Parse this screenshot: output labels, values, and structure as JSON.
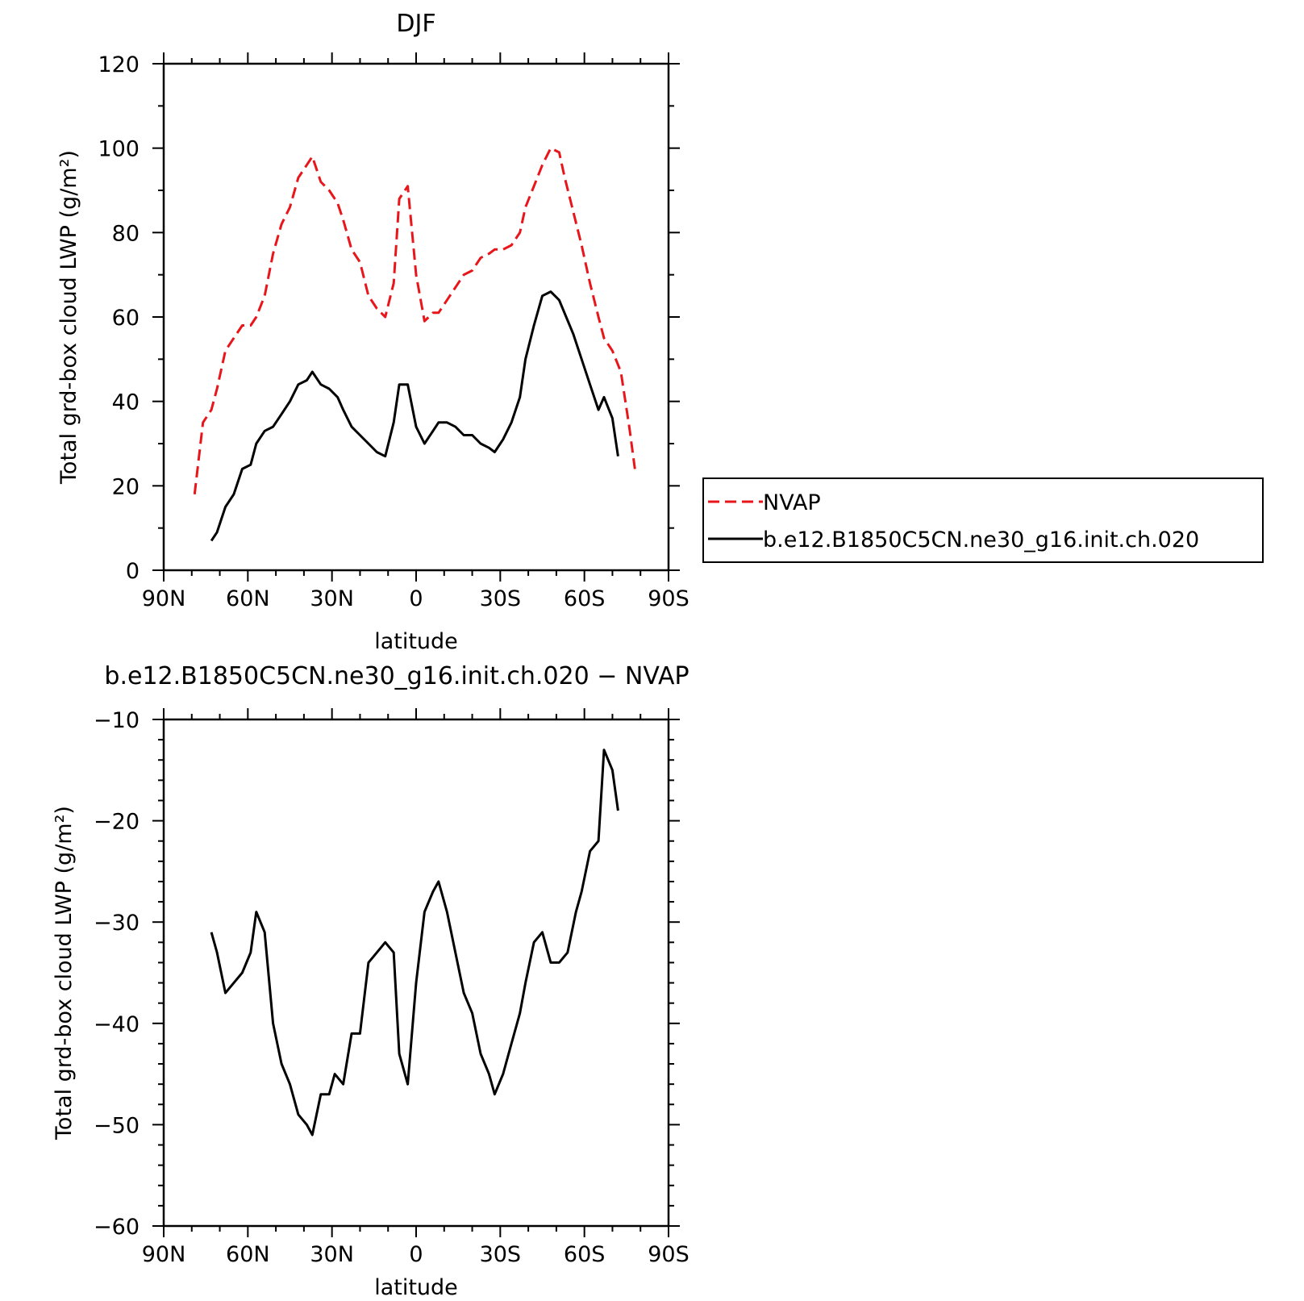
{
  "chart_data": [
    {
      "type": "line",
      "title": "DJF",
      "xlabel": "latitude",
      "ylabel": "Total grd-box cloud LWP (g/m²)",
      "xlim": [
        90,
        -90
      ],
      "ylim": [
        0,
        120
      ],
      "x_ticks": [
        90,
        60,
        30,
        0,
        -30,
        -60,
        -90
      ],
      "x_tick_labels": [
        "90N",
        "60N",
        "30N",
        "0",
        "30S",
        "60S",
        "90S"
      ],
      "y_ticks": [
        0,
        20,
        40,
        60,
        80,
        100,
        120
      ],
      "y_tick_labels": [
        "0",
        "20",
        "40",
        "60",
        "80",
        "100",
        "120"
      ],
      "legend_position": "right",
      "series": [
        {
          "name": "NVAP",
          "color": "#e8161a",
          "dash": "dashed",
          "x": [
            79,
            76,
            73,
            71,
            68,
            65,
            62,
            59,
            57,
            54,
            51,
            48,
            45,
            42,
            39,
            37,
            34,
            31,
            28,
            26,
            23,
            20,
            17,
            14,
            11,
            8,
            6,
            3,
            0,
            -3,
            -6,
            -8,
            -11,
            -14,
            -17,
            -20,
            -23,
            -26,
            -28,
            -31,
            -34,
            -37,
            -39,
            -42,
            -45,
            -48,
            -51,
            -53,
            -56,
            -59,
            -62,
            -65,
            -67,
            -70,
            -73,
            -76,
            -78
          ],
          "y": [
            18,
            35,
            38,
            43,
            52,
            55,
            58,
            58,
            60,
            65,
            75,
            82,
            86,
            93,
            96,
            98,
            92,
            90,
            87,
            83,
            76,
            73,
            65,
            62,
            60,
            68,
            88,
            91,
            70,
            59,
            61,
            61,
            64,
            67,
            70,
            71,
            74,
            75,
            76,
            76,
            77,
            80,
            86,
            91,
            96,
            100,
            99,
            93,
            85,
            77,
            68,
            60,
            55,
            52,
            47,
            34,
            24
          ]
        },
        {
          "name": "b.e12.B1850C5CN.ne30_g16.init.ch.020",
          "color": "#000000",
          "dash": "solid",
          "x": [
            73,
            71,
            68,
            65,
            62,
            59,
            57,
            54,
            51,
            48,
            45,
            42,
            39,
            37,
            34,
            31,
            28,
            26,
            23,
            20,
            17,
            14,
            11,
            8,
            6,
            3,
            0,
            -3,
            -6,
            -8,
            -11,
            -14,
            -17,
            -20,
            -23,
            -26,
            -28,
            -31,
            -34,
            -37,
            -39,
            -42,
            -45,
            -48,
            -51,
            -56,
            -59,
            -62,
            -65,
            -67,
            -70,
            -72
          ],
          "y": [
            7,
            9,
            15,
            18,
            24,
            25,
            30,
            33,
            34,
            37,
            40,
            44,
            45,
            47,
            44,
            43,
            41,
            38,
            34,
            32,
            30,
            28,
            27,
            35,
            44,
            44,
            34,
            30,
            33,
            35,
            35,
            34,
            32,
            32,
            30,
            29,
            28,
            31,
            35,
            41,
            50,
            58,
            65,
            66,
            64,
            56,
            50,
            44,
            38,
            41,
            36,
            27
          ]
        }
      ]
    },
    {
      "type": "line",
      "title": "b.e12.B1850C5CN.ne30_g16.init.ch.020 − NVAP",
      "xlabel": "latitude",
      "ylabel": "Total grd-box cloud LWP (g/m²)",
      "xlim": [
        90,
        -90
      ],
      "ylim": [
        -60,
        -10
      ],
      "x_ticks": [
        90,
        60,
        30,
        0,
        -30,
        -60,
        -90
      ],
      "x_tick_labels": [
        "90N",
        "60N",
        "30N",
        "0",
        "30S",
        "60S",
        "90S"
      ],
      "y_ticks": [
        -60,
        -50,
        -40,
        -30,
        -20,
        -10
      ],
      "y_tick_labels": [
        "−60",
        "−50",
        "−40",
        "−30",
        "−20",
        "−10"
      ],
      "series": [
        {
          "color": "#000000",
          "dash": "solid",
          "x": [
            73,
            71,
            68,
            65,
            62,
            59,
            57,
            54,
            51,
            48,
            45,
            42,
            39,
            37,
            34,
            31,
            29,
            26,
            23,
            20,
            17,
            14,
            11,
            8,
            6,
            3,
            0,
            -3,
            -6,
            -8,
            -11,
            -14,
            -17,
            -20,
            -23,
            -26,
            -28,
            -31,
            -34,
            -37,
            -39,
            -42,
            -45,
            -48,
            -51,
            -54,
            -57,
            -59,
            -62,
            -65,
            -67,
            -70,
            -72
          ],
          "y": [
            -31,
            -33,
            -37,
            -36,
            -35,
            -33,
            -29,
            -31,
            -40,
            -44,
            -46,
            -49,
            -50,
            -51,
            -47,
            -47,
            -45,
            -46,
            -41,
            -41,
            -34,
            -33,
            -32,
            -33,
            -43,
            -46,
            -36,
            -29,
            -27,
            -26,
            -29,
            -33,
            -37,
            -39,
            -43,
            -45,
            -47,
            -45,
            -42,
            -39,
            -36,
            -32,
            -31,
            -34,
            -34,
            -33,
            -29,
            -27,
            -23,
            -22,
            -13,
            -15,
            -19
          ]
        }
      ]
    }
  ]
}
